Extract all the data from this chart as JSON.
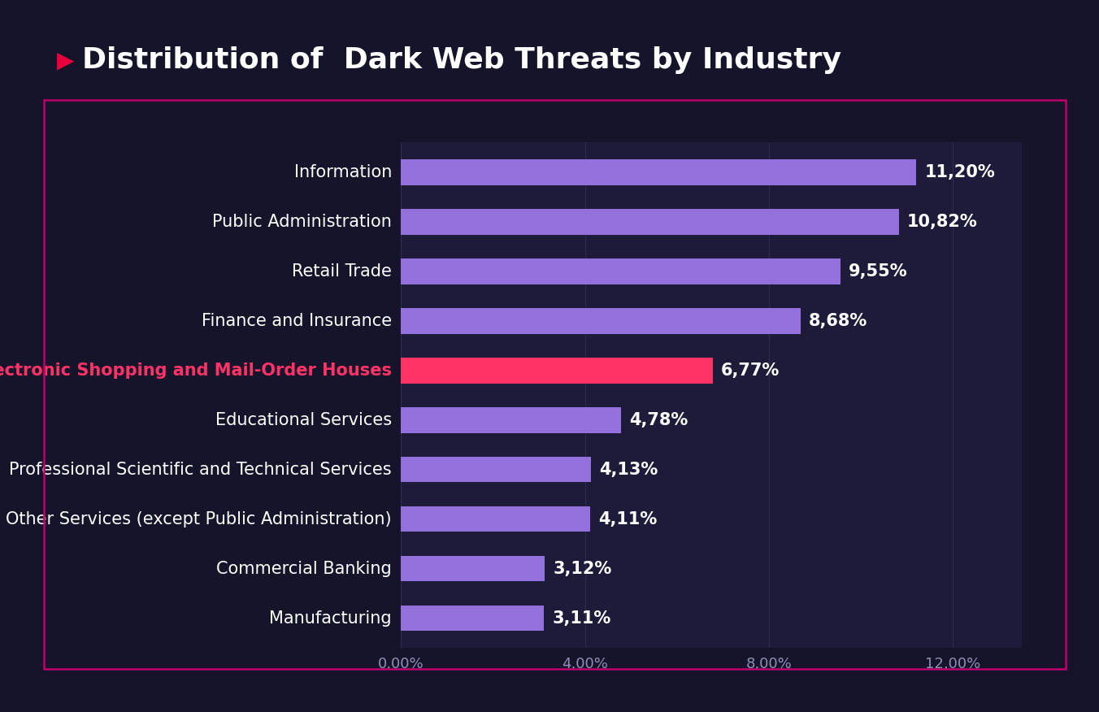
{
  "title": "Distribution of  Dark Web Threats by Industry",
  "title_color": "#ffffff",
  "title_fontsize": 26,
  "title_bold": true,
  "triangle_color": "#e8003d",
  "background_color": "#16142b",
  "plot_bg_color": "#1e1b3a",
  "border_color": "#c0006a",
  "categories": [
    "Manufacturing",
    "Commercial Banking",
    "Other Services (except Public Administration)",
    "Professional Scientific and Technical Services",
    "Educational Services",
    "Electronic Shopping and Mail-Order Houses",
    "Finance and Insurance",
    "Retail Trade",
    "Public Administration",
    "Information"
  ],
  "values": [
    3.11,
    3.12,
    4.11,
    4.13,
    4.78,
    6.77,
    8.68,
    9.55,
    10.82,
    11.2
  ],
  "value_labels": [
    "3,11%",
    "3,12%",
    "4,11%",
    "4,13%",
    "4,78%",
    "6,77%",
    "8,68%",
    "9,55%",
    "10,82%",
    "11,20%"
  ],
  "bar_colors": [
    "#9370db",
    "#9370db",
    "#9370db",
    "#9370db",
    "#9370db",
    "#ff3366",
    "#9370db",
    "#9370db",
    "#9370db",
    "#9370db"
  ],
  "highlight_index": 5,
  "highlight_label_color": "#ff3366",
  "normal_label_color": "#ffffff",
  "value_label_color": "#ffffff",
  "value_label_fontsize": 15,
  "category_fontsize": 15,
  "xlabel_ticks": [
    "0,00%",
    "4,00%",
    "8,00%",
    "12,00%"
  ],
  "xlabel_tick_values": [
    0,
    4,
    8,
    12
  ],
  "xlim": [
    0,
    13.5
  ],
  "grid_color": "#2e2b50",
  "tick_color": "#9090b8",
  "bar_height": 0.52
}
